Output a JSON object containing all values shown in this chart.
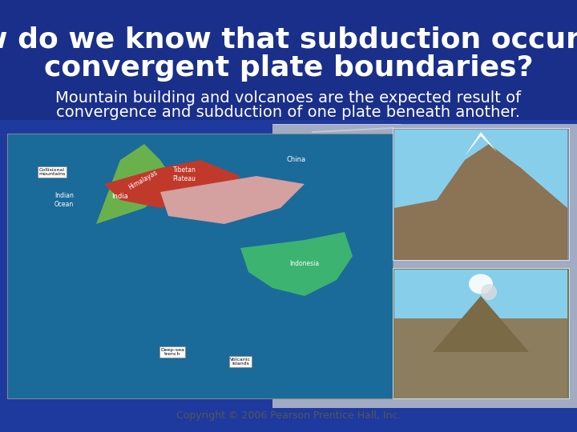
{
  "title_line1": "How do we know that subduction occurs at",
  "title_line2": "convergent plate boundaries?",
  "subtitle_line1": "Mountain building and volcanoes are the expected result of",
  "subtitle_line2": "convergence and subduction of one plate beneath another.",
  "copyright": "Copyright © 2006 Pearson Prentice Hall, Inc.",
  "bg_color": "#1a2f8a",
  "title_color": "#ffffff",
  "subtitle_color": "#ffffff",
  "copyright_color": "#333333",
  "title_fontsize": 26,
  "subtitle_fontsize": 14,
  "copyright_fontsize": 9,
  "connector_color": "#b0b8c8",
  "fig_width": 7.2,
  "fig_height": 5.4
}
